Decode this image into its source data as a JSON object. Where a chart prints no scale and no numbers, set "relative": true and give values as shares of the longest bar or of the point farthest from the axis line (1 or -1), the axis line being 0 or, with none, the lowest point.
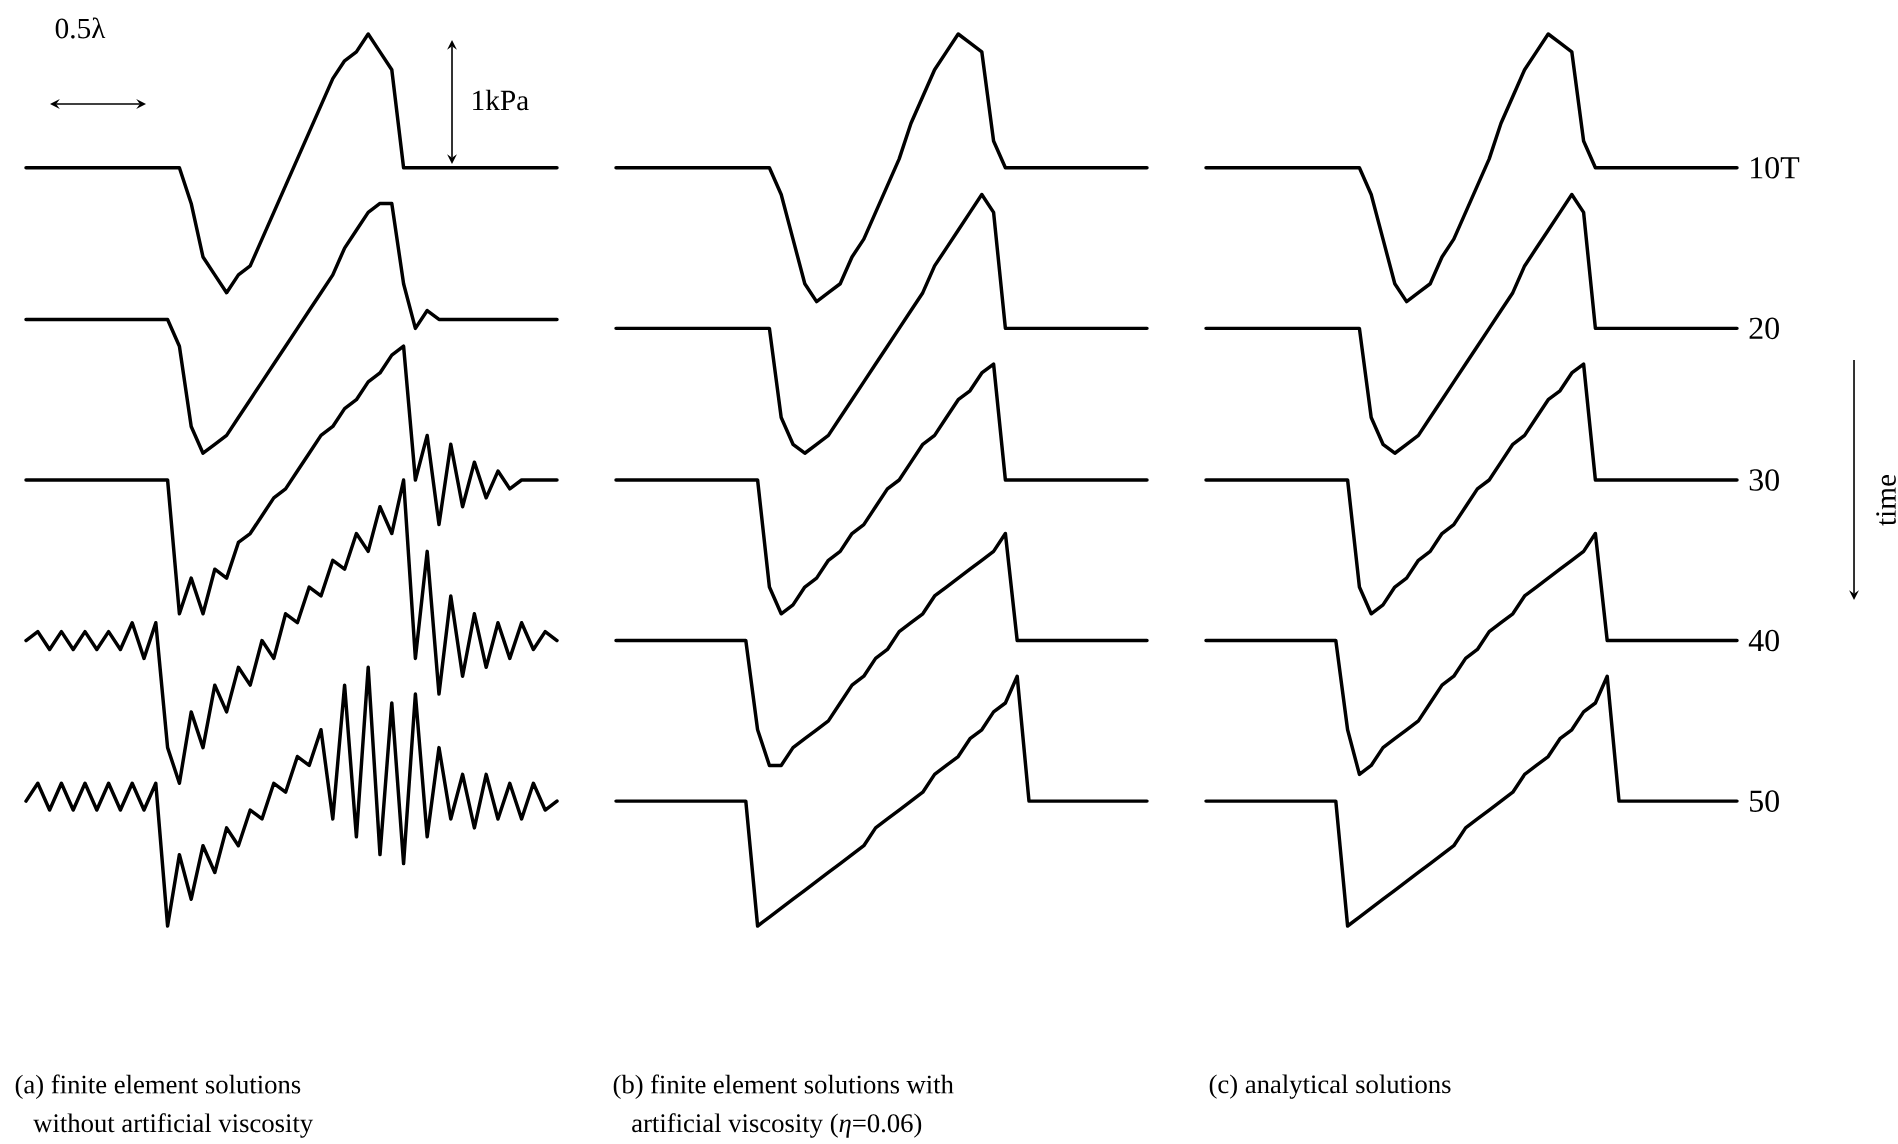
{
  "chart_data": [
    {
      "type": "line",
      "relative": true,
      "categories": [
        null,
        null,
        null,
        null,
        null,
        null,
        null,
        null,
        null,
        null,
        null,
        null,
        null,
        null,
        null,
        null,
        null,
        null,
        null,
        null,
        null,
        null,
        null,
        null,
        null,
        null,
        null,
        null,
        null,
        null,
        null,
        null,
        null,
        null,
        null,
        null,
        null,
        null,
        null,
        null,
        null,
        null,
        null,
        null,
        null,
        null
      ],
      "annotations": [
        "(a) finite element solutions without artificial viscosity",
        "0.5λ",
        "1kPa"
      ],
      "series": [
        {
          "color": "#000000",
          "values": [
            0.85,
            0.85,
            0.85,
            0.85,
            0.85,
            0.85,
            0.85,
            0.85,
            0.85,
            0.85,
            0.85,
            0.85,
            0.85,
            0.85,
            0.81,
            0.75,
            0.73,
            0.71,
            0.73,
            0.74,
            0.77,
            0.8,
            0.83,
            0.86,
            0.89,
            0.92,
            0.95,
            0.97,
            0.98,
            1.0,
            0.98,
            0.96,
            0.85,
            0.85,
            0.85,
            0.85,
            0.85,
            0.85,
            0.85,
            0.85,
            0.85,
            0.85,
            0.85,
            0.85,
            0.85,
            0.85
          ]
        },
        {
          "color": "#000000",
          "values": [
            0.68,
            0.68,
            0.68,
            0.68,
            0.68,
            0.68,
            0.68,
            0.68,
            0.68,
            0.68,
            0.68,
            0.68,
            0.68,
            0.65,
            0.56,
            0.53,
            0.54,
            0.55,
            0.57,
            0.59,
            0.61,
            0.63,
            0.65,
            0.67,
            0.69,
            0.71,
            0.73,
            0.76,
            0.78,
            0.8,
            0.81,
            0.81,
            0.72,
            0.67,
            0.69,
            0.68,
            0.68,
            0.68,
            0.68,
            0.68,
            0.68,
            0.68,
            0.68,
            0.68,
            0.68,
            0.68
          ]
        },
        {
          "color": "#000000",
          "values": [
            0.5,
            0.5,
            0.5,
            0.5,
            0.5,
            0.5,
            0.5,
            0.5,
            0.5,
            0.5,
            0.5,
            0.5,
            0.5,
            0.35,
            0.39,
            0.35,
            0.4,
            0.39,
            0.43,
            0.44,
            0.46,
            0.48,
            0.49,
            0.51,
            0.53,
            0.55,
            0.56,
            0.58,
            0.59,
            0.61,
            0.62,
            0.64,
            0.65,
            0.5,
            0.55,
            0.45,
            0.54,
            0.47,
            0.52,
            0.48,
            0.51,
            0.49,
            0.5,
            0.5,
            0.5,
            0.5
          ]
        },
        {
          "color": "#000000",
          "values": [
            0.32,
            0.33,
            0.31,
            0.33,
            0.31,
            0.33,
            0.31,
            0.33,
            0.31,
            0.34,
            0.3,
            0.34,
            0.2,
            0.16,
            0.24,
            0.2,
            0.27,
            0.24,
            0.29,
            0.27,
            0.32,
            0.3,
            0.35,
            0.34,
            0.38,
            0.37,
            0.41,
            0.4,
            0.44,
            0.42,
            0.47,
            0.44,
            0.5,
            0.3,
            0.42,
            0.26,
            0.37,
            0.28,
            0.35,
            0.29,
            0.34,
            0.3,
            0.34,
            0.31,
            0.33,
            0.32
          ]
        },
        {
          "color": "#000000",
          "values": [
            0.14,
            0.16,
            0.13,
            0.16,
            0.13,
            0.16,
            0.13,
            0.16,
            0.13,
            0.16,
            0.13,
            0.16,
            0,
            0.08,
            0.03,
            0.09,
            0.06,
            0.11,
            0.09,
            0.13,
            0.12,
            0.16,
            0.15,
            0.19,
            0.18,
            0.22,
            0.12,
            0.27,
            0.1,
            0.29,
            0.08,
            0.25,
            0.07,
            0.26,
            0.1,
            0.2,
            0.12,
            0.17,
            0.11,
            0.17,
            0.12,
            0.16,
            0.12,
            0.16,
            0.13,
            0.14
          ]
        }
      ]
    },
    {
      "type": "line",
      "relative": true,
      "categories": [
        null,
        null,
        null,
        null,
        null,
        null,
        null,
        null,
        null,
        null,
        null,
        null,
        null,
        null,
        null,
        null,
        null,
        null,
        null,
        null,
        null,
        null,
        null,
        null,
        null,
        null,
        null,
        null,
        null,
        null,
        null,
        null,
        null,
        null,
        null,
        null,
        null,
        null,
        null,
        null,
        null,
        null,
        null,
        null,
        null,
        null
      ],
      "annotations": [
        "(b) finite element solutions with artificial viscosity (*η*=0.06)"
      ],
      "series": [
        {
          "color": "#000000",
          "values": [
            0.85,
            0.85,
            0.85,
            0.85,
            0.85,
            0.85,
            0.85,
            0.85,
            0.85,
            0.85,
            0.85,
            0.85,
            0.85,
            0.85,
            0.82,
            0.77,
            0.72,
            0.7,
            0.71,
            0.72,
            0.75,
            0.77,
            0.8,
            0.83,
            0.86,
            0.9,
            0.93,
            0.96,
            0.98,
            1.0,
            0.99,
            0.98,
            0.88,
            0.85,
            0.85,
            0.85,
            0.85,
            0.85,
            0.85,
            0.85,
            0.85,
            0.85,
            0.85,
            0.85,
            0.85,
            0.85
          ]
        },
        {
          "color": "#000000",
          "values": [
            0.67,
            0.67,
            0.67,
            0.67,
            0.67,
            0.67,
            0.67,
            0.67,
            0.67,
            0.67,
            0.67,
            0.67,
            0.67,
            0.67,
            0.57,
            0.54,
            0.53,
            0.54,
            0.55,
            0.57,
            0.59,
            0.61,
            0.63,
            0.65,
            0.67,
            0.69,
            0.71,
            0.74,
            0.76,
            0.78,
            0.8,
            0.82,
            0.8,
            0.67,
            0.67,
            0.67,
            0.67,
            0.67,
            0.67,
            0.67,
            0.67,
            0.67,
            0.67,
            0.67,
            0.67,
            0.67
          ]
        },
        {
          "color": "#000000",
          "values": [
            0.5,
            0.5,
            0.5,
            0.5,
            0.5,
            0.5,
            0.5,
            0.5,
            0.5,
            0.5,
            0.5,
            0.5,
            0.5,
            0.38,
            0.35,
            0.36,
            0.38,
            0.39,
            0.41,
            0.42,
            0.44,
            0.45,
            0.47,
            0.49,
            0.5,
            0.52,
            0.54,
            0.55,
            0.57,
            0.59,
            0.6,
            0.62,
            0.63,
            0.5,
            0.5,
            0.5,
            0.5,
            0.5,
            0.5,
            0.5,
            0.5,
            0.5,
            0.5,
            0.5,
            0.5,
            0.5
          ]
        },
        {
          "color": "#000000",
          "values": [
            0.32,
            0.32,
            0.32,
            0.32,
            0.32,
            0.32,
            0.32,
            0.32,
            0.32,
            0.32,
            0.32,
            0.32,
            0.22,
            0.18,
            0.18,
            0.2,
            0.21,
            0.22,
            0.23,
            0.25,
            0.27,
            0.28,
            0.3,
            0.31,
            0.33,
            0.34,
            0.35,
            0.37,
            0.38,
            0.39,
            0.4,
            0.41,
            0.42,
            0.44,
            0.32,
            0.32,
            0.32,
            0.32,
            0.32,
            0.32,
            0.32,
            0.32,
            0.32,
            0.32,
            0.32,
            0.32
          ]
        },
        {
          "color": "#000000",
          "values": [
            0.14,
            0.14,
            0.14,
            0.14,
            0.14,
            0.14,
            0.14,
            0.14,
            0.14,
            0.14,
            0.14,
            0.14,
            0,
            0.01,
            0.02,
            0.03,
            0.04,
            0.05,
            0.06,
            0.07,
            0.08,
            0.09,
            0.11,
            0.12,
            0.13,
            0.14,
            0.15,
            0.17,
            0.18,
            0.19,
            0.21,
            0.22,
            0.24,
            0.25,
            0.28,
            0.14,
            0.14,
            0.14,
            0.14,
            0.14,
            0.14,
            0.14,
            0.14,
            0.14,
            0.14,
            0.14
          ]
        }
      ]
    },
    {
      "type": "line",
      "relative": true,
      "categories": [
        null,
        null,
        null,
        null,
        null,
        null,
        null,
        null,
        null,
        null,
        null,
        null,
        null,
        null,
        null,
        null,
        null,
        null,
        null,
        null,
        null,
        null,
        null,
        null,
        null,
        null,
        null,
        null,
        null,
        null,
        null,
        null,
        null,
        null,
        null,
        null,
        null,
        null,
        null,
        null,
        null,
        null,
        null,
        null,
        null,
        null
      ],
      "annotations": [
        "(c) analytical solutions",
        "time"
      ],
      "series": [
        {
          "name": "10T",
          "color": "#000000",
          "values": [
            0.85,
            0.85,
            0.85,
            0.85,
            0.85,
            0.85,
            0.85,
            0.85,
            0.85,
            0.85,
            0.85,
            0.85,
            0.85,
            0.85,
            0.82,
            0.77,
            0.72,
            0.7,
            0.71,
            0.72,
            0.75,
            0.77,
            0.8,
            0.83,
            0.86,
            0.9,
            0.93,
            0.96,
            0.98,
            1.0,
            0.99,
            0.98,
            0.88,
            0.85,
            0.85,
            0.85,
            0.85,
            0.85,
            0.85,
            0.85,
            0.85,
            0.85,
            0.85,
            0.85,
            0.85,
            0.85
          ]
        },
        {
          "name": "20",
          "color": "#000000",
          "values": [
            0.67,
            0.67,
            0.67,
            0.67,
            0.67,
            0.67,
            0.67,
            0.67,
            0.67,
            0.67,
            0.67,
            0.67,
            0.67,
            0.67,
            0.57,
            0.54,
            0.53,
            0.54,
            0.55,
            0.57,
            0.59,
            0.61,
            0.63,
            0.65,
            0.67,
            0.69,
            0.71,
            0.74,
            0.76,
            0.78,
            0.8,
            0.82,
            0.8,
            0.67,
            0.67,
            0.67,
            0.67,
            0.67,
            0.67,
            0.67,
            0.67,
            0.67,
            0.67,
            0.67,
            0.67,
            0.67
          ]
        },
        {
          "name": "30",
          "color": "#000000",
          "values": [
            0.5,
            0.5,
            0.5,
            0.5,
            0.5,
            0.5,
            0.5,
            0.5,
            0.5,
            0.5,
            0.5,
            0.5,
            0.5,
            0.38,
            0.35,
            0.36,
            0.38,
            0.39,
            0.41,
            0.42,
            0.44,
            0.45,
            0.47,
            0.49,
            0.5,
            0.52,
            0.54,
            0.55,
            0.57,
            0.59,
            0.6,
            0.62,
            0.63,
            0.5,
            0.5,
            0.5,
            0.5,
            0.5,
            0.5,
            0.5,
            0.5,
            0.5,
            0.5,
            0.5,
            0.5,
            0.5
          ]
        },
        {
          "name": "40",
          "color": "#000000",
          "values": [
            0.32,
            0.32,
            0.32,
            0.32,
            0.32,
            0.32,
            0.32,
            0.32,
            0.32,
            0.32,
            0.32,
            0.32,
            0.22,
            0.17,
            0.18,
            0.2,
            0.21,
            0.22,
            0.23,
            0.25,
            0.27,
            0.28,
            0.3,
            0.31,
            0.33,
            0.34,
            0.35,
            0.37,
            0.38,
            0.39,
            0.4,
            0.41,
            0.42,
            0.44,
            0.32,
            0.32,
            0.32,
            0.32,
            0.32,
            0.32,
            0.32,
            0.32,
            0.32,
            0.32,
            0.32,
            0.32
          ]
        },
        {
          "name": "50",
          "color": "#000000",
          "values": [
            0.14,
            0.14,
            0.14,
            0.14,
            0.14,
            0.14,
            0.14,
            0.14,
            0.14,
            0.14,
            0.14,
            0.14,
            0,
            0.01,
            0.02,
            0.03,
            0.04,
            0.05,
            0.06,
            0.07,
            0.08,
            0.09,
            0.11,
            0.12,
            0.13,
            0.14,
            0.15,
            0.17,
            0.18,
            0.19,
            0.21,
            0.22,
            0.24,
            0.25,
            0.28,
            0.14,
            0.14,
            0.14,
            0.14,
            0.14,
            0.14,
            0.14,
            0.14,
            0.14,
            0.14,
            0.14
          ]
        }
      ]
    }
  ]
}
